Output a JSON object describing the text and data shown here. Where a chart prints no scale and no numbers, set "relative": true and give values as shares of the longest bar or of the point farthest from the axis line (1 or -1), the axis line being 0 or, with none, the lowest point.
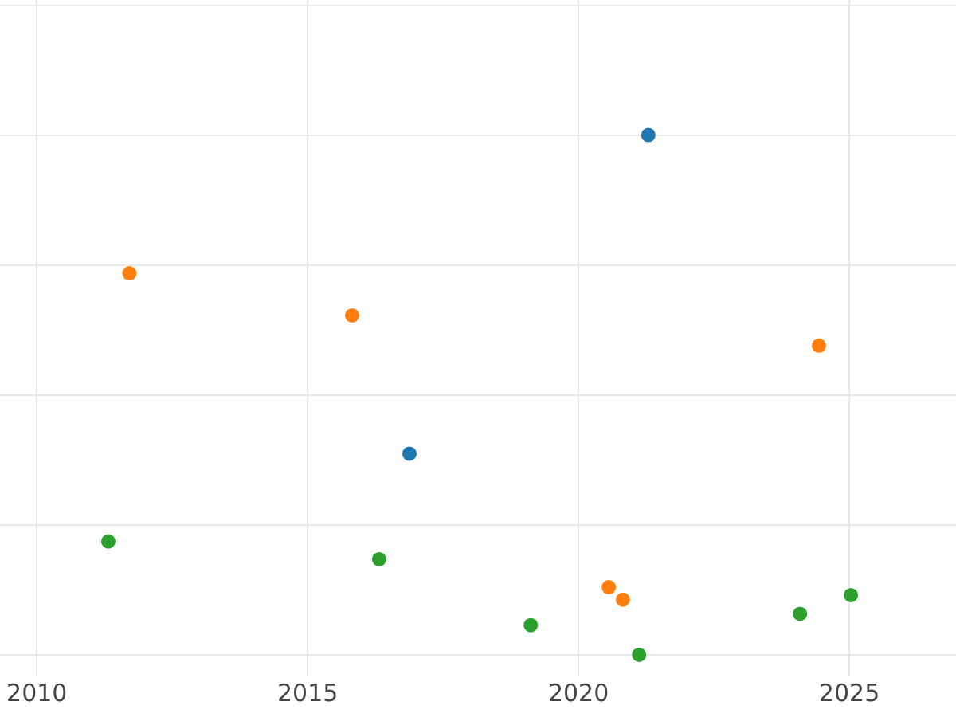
{
  "chart_data": {
    "type": "scatter",
    "relative": true,
    "marker": "circle",
    "grid": true,
    "xlim": [
      2009.32,
      2026.97
    ],
    "xticks": [
      2010,
      2015,
      2020,
      2025
    ],
    "tick_labels": "x",
    "series": [
      {
        "color": "#1f77b4",
        "x": [
          2021.29,
          2016.88
        ],
        "values": [
          1.0,
          0.387
        ]
      },
      {
        "color": "#ff7f0e",
        "x": [
          2011.71,
          2015.82,
          2024.44,
          2020.56,
          2020.82
        ],
        "values": [
          0.734,
          0.653,
          0.595,
          0.13,
          0.106
        ]
      },
      {
        "color": "#2ca02c",
        "x": [
          2011.32,
          2016.32,
          2019.12,
          2021.12,
          2024.09,
          2025.03
        ],
        "values": [
          0.218,
          0.184,
          0.057,
          0,
          0.079,
          0.115
        ]
      }
    ]
  }
}
